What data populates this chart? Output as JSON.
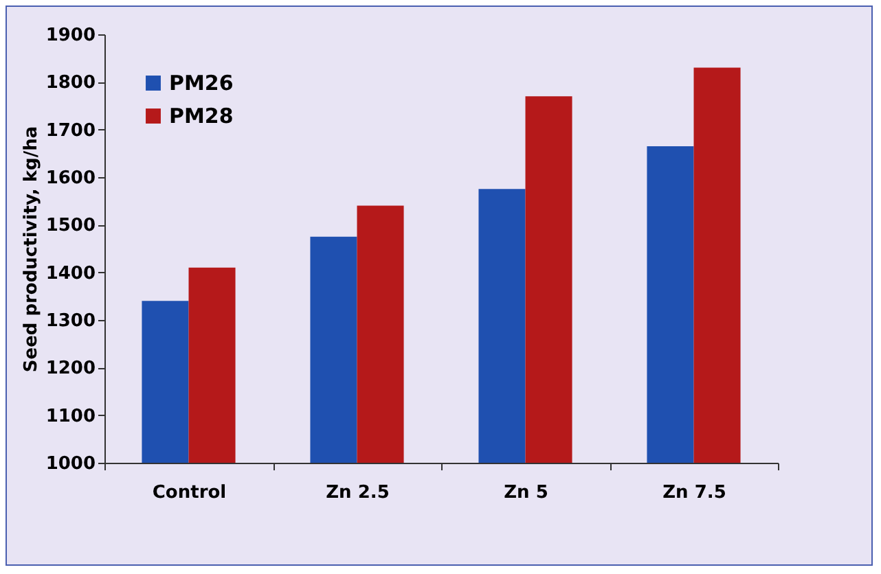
{
  "chart_data": {
    "type": "bar",
    "ylabel": "Seed productivity, kg/ha",
    "categories": [
      "Control",
      "Zn 2.5",
      "Zn 5",
      "Zn 7.5"
    ],
    "series": [
      {
        "name": "PM26",
        "color": "#1f50b0",
        "values": [
          1340,
          1475,
          1575,
          1665
        ]
      },
      {
        "name": "PM28",
        "color": "#b5191a",
        "values": [
          1410,
          1540,
          1770,
          1830
        ]
      }
    ],
    "ylim": [
      1000,
      1900
    ],
    "yticks": [
      1000,
      1100,
      1200,
      1300,
      1400,
      1500,
      1600,
      1700,
      1800,
      1900
    ],
    "grid": false,
    "legend": "top left"
  }
}
